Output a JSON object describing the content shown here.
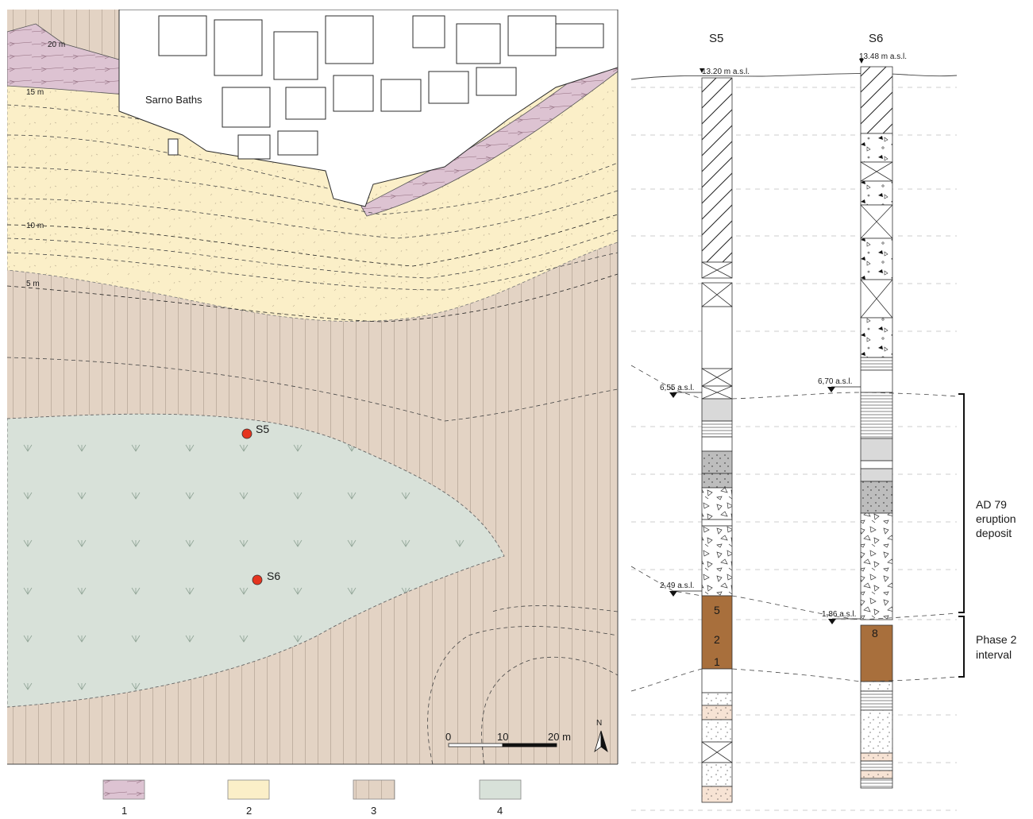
{
  "map": {
    "place_label": "Sarno Baths",
    "contours": [
      "20 m",
      "15 m",
      "10 m",
      "5 m"
    ],
    "points": [
      {
        "label": "S5"
      },
      {
        "label": "S6"
      }
    ],
    "scale": {
      "tick0": "0",
      "tick1": "10",
      "tick2": "20 m"
    },
    "north": "N"
  },
  "legend": [
    {
      "id": "1",
      "color": "#ddc3d2"
    },
    {
      "id": "2",
      "color": "#fbefc8"
    },
    {
      "id": "3",
      "color": "#e3d3c4"
    },
    {
      "id": "4",
      "color": "#d8e1d9"
    }
  ],
  "sections": {
    "cores": [
      {
        "name": "S5",
        "top_elev": "13.20 m a.s.l.",
        "marker_upper": "6,55 a.s.l.",
        "marker_lower": "2,49 a.s.l.",
        "unit_labels": [
          "5",
          "2",
          "1"
        ]
      },
      {
        "name": "S6",
        "top_elev": "13.48 m a.s.l.",
        "marker_upper": "6,70 a.s.l.",
        "marker_lower": "1,86 a.s.l.",
        "unit_labels": [
          "8"
        ]
      }
    ],
    "brackets": [
      {
        "lines": [
          "AD 79",
          "eruption",
          "deposit"
        ]
      },
      {
        "lines": [
          "Phase 2",
          "interval"
        ]
      }
    ]
  },
  "colors": {
    "unit1": "#ddc3d2",
    "unit2": "#fbefc8",
    "unit3": "#e3d3c4",
    "unit4": "#d8e1d9",
    "paleosol": "#a86f3c",
    "point": "#e5341f"
  }
}
